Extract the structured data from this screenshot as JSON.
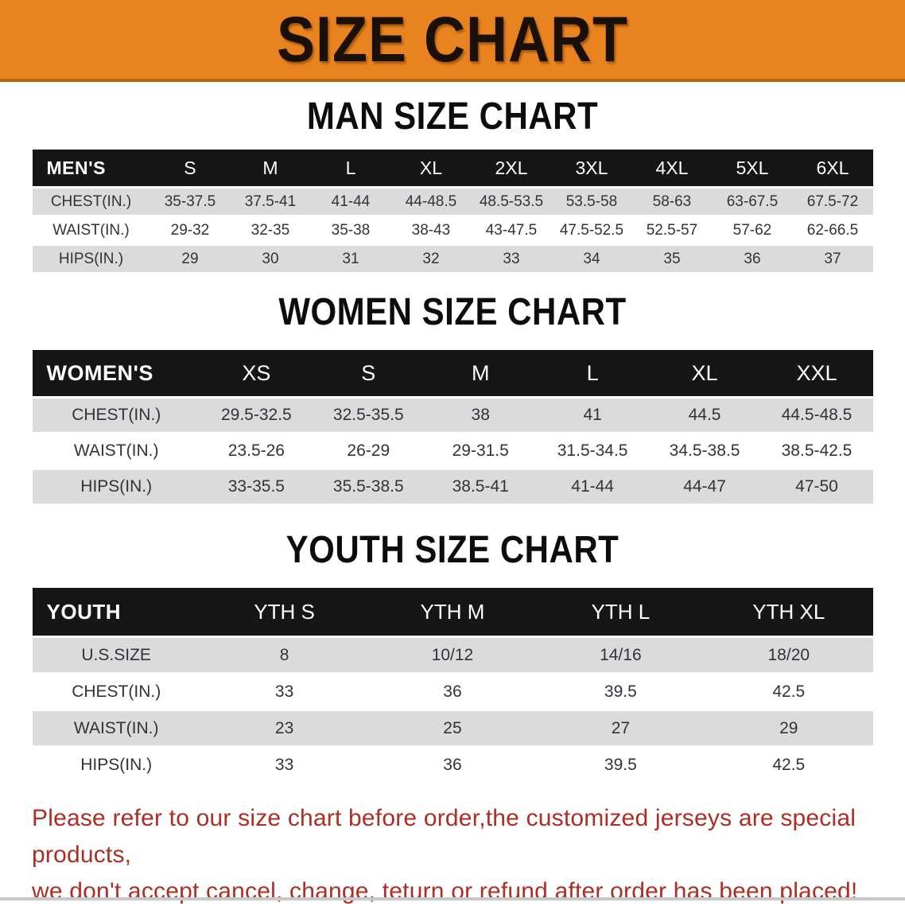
{
  "banner": {
    "title": "SIZE CHART",
    "bg_color": "#E8831F",
    "border_color": "#B9650E"
  },
  "colors": {
    "header_bar": "#161616",
    "row_gray": "#DBDBDB",
    "row_white": "#FFFFFF",
    "footer_red": "#AD2E24"
  },
  "sections": [
    {
      "heading": "MAN SIZE CHART",
      "table": {
        "header_label": "MEN'S",
        "sizes": [
          "S",
          "M",
          "L",
          "XL",
          "2XL",
          "3XL",
          "4XL",
          "5XL",
          "6XL"
        ],
        "rows": [
          {
            "label": "CHEST(IN.)",
            "values": [
              "35-37.5",
              "37.5-41",
              "41-44",
              "44-48.5",
              "48.5-53.5",
              "53.5-58",
              "58-63",
              "63-67.5",
              "67.5-72"
            ]
          },
          {
            "label": "WAIST(IN.)",
            "values": [
              "29-32",
              "32-35",
              "35-38",
              "38-43",
              "43-47.5",
              "47.5-52.5",
              "52.5-57",
              "57-62",
              "62-66.5"
            ]
          },
          {
            "label": "HIPS(IN.)",
            "values": [
              "29",
              "30",
              "31",
              "32",
              "33",
              "34",
              "35",
              "36",
              "37"
            ]
          }
        ]
      }
    },
    {
      "heading": "WOMEN SIZE CHART",
      "table": {
        "header_label": "WOMEN'S",
        "sizes": [
          "XS",
          "S",
          "M",
          "L",
          "XL",
          "XXL"
        ],
        "rows": [
          {
            "label": "CHEST(IN.)",
            "values": [
              "29.5-32.5",
              "32.5-35.5",
              "38",
              "41",
              "44.5",
              "44.5-48.5"
            ]
          },
          {
            "label": "WAIST(IN.)",
            "values": [
              "23.5-26",
              "26-29",
              "29-31.5",
              "31.5-34.5",
              "34.5-38.5",
              "38.5-42.5"
            ]
          },
          {
            "label": "HIPS(IN.)",
            "values": [
              "33-35.5",
              "35.5-38.5",
              "38.5-41",
              "41-44",
              "44-47",
              "47-50"
            ]
          }
        ]
      }
    },
    {
      "heading": "YOUTH SIZE CHART",
      "table": {
        "header_label": "YOUTH",
        "sizes": [
          "YTH S",
          "YTH M",
          "YTH L",
          "YTH XL"
        ],
        "rows": [
          {
            "label": "U.S.SIZE",
            "values": [
              "8",
              "10/12",
              "14/16",
              "18/20"
            ]
          },
          {
            "label": "CHEST(IN.)",
            "values": [
              "33",
              "36",
              "39.5",
              "42.5"
            ]
          },
          {
            "label": "WAIST(IN.)",
            "values": [
              "23",
              "25",
              "27",
              "29"
            ]
          },
          {
            "label": "HIPS(IN.)",
            "values": [
              "33",
              "36",
              "39.5",
              "42.5"
            ]
          }
        ]
      }
    }
  ],
  "footer": {
    "line1": "Please refer to our size chart before order,the customized jerseys are special products,",
    "line2": "we don't accept cancel, change, teturn or refund after order has been placed!"
  }
}
